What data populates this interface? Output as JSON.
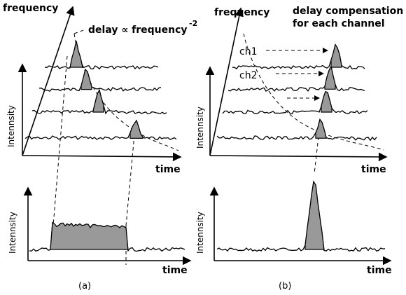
{
  "panel_a": {
    "frequency": "frequency",
    "delay_label": "delay ∝ frequency",
    "delay_exponent": "-2",
    "intensity_top": "Intennsity",
    "time_top": "time",
    "intensity_bottom": "Intennsity",
    "time_bottom": "time",
    "caption": "(a)"
  },
  "panel_b": {
    "frequency": "frequency",
    "compensation_line1": "delay compensation",
    "compensation_line2": "for each channel",
    "ch1": "ch1",
    "ch2": "ch2",
    "intensity_top": "Intennsity",
    "time_top": "time",
    "intensity_bottom": "Intennsity",
    "time_bottom": "time",
    "caption": "(b)"
  }
}
